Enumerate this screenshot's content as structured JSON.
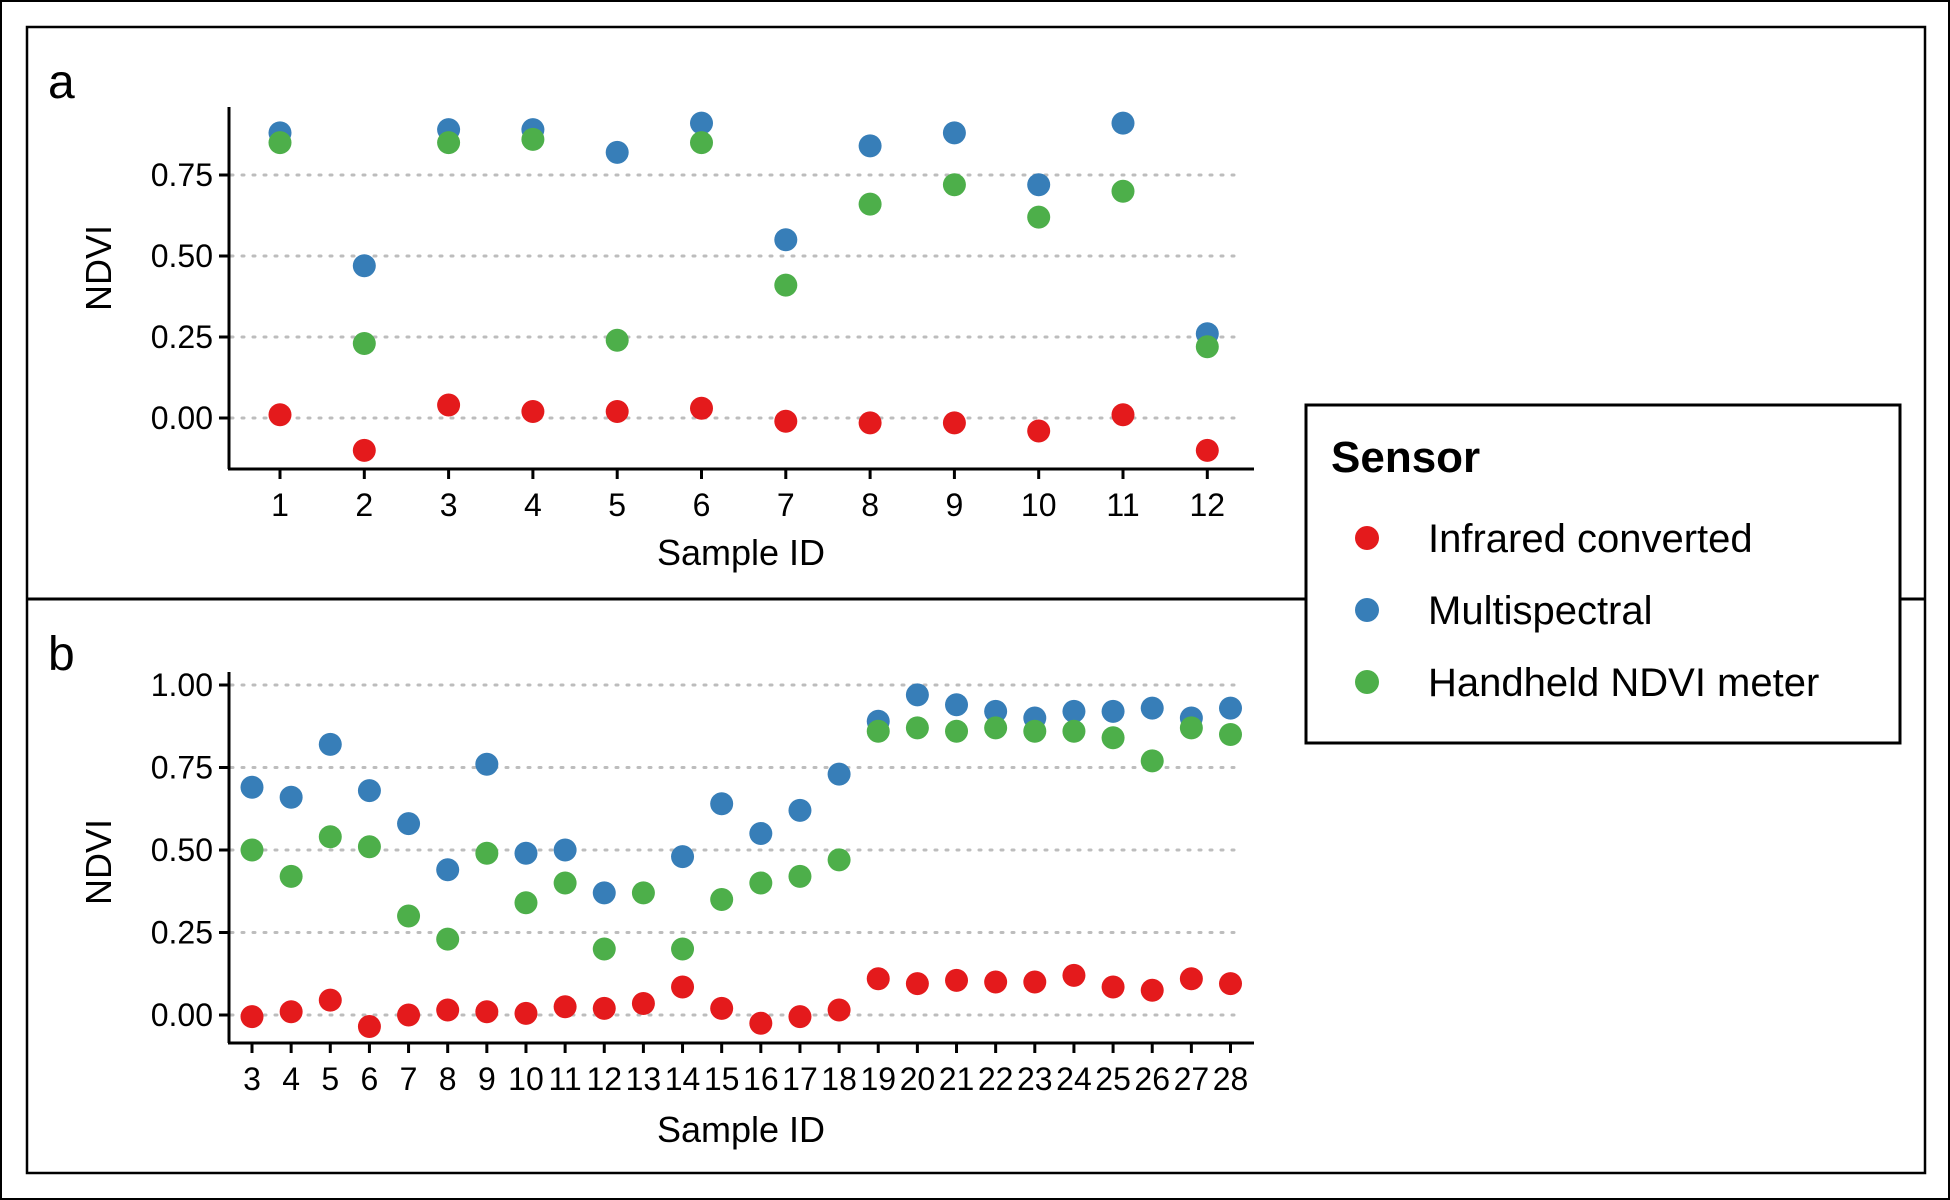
{
  "legend": {
    "title": "Sensor",
    "items": [
      {
        "label": "Infrared converted",
        "color": "#e41a1c"
      },
      {
        "label": "Multispectral",
        "color": "#377eb8"
      },
      {
        "label": "Handheld NDVI meter",
        "color": "#4daf4a"
      }
    ]
  },
  "chart_data": [
    {
      "panel": "a",
      "type": "scatter",
      "xlabel": "Sample ID",
      "ylabel": "NDVI",
      "categories": [
        "1",
        "2",
        "3",
        "4",
        "5",
        "6",
        "7",
        "8",
        "9",
        "10",
        "11",
        "12"
      ],
      "yticks": [
        "0.00",
        "0.25",
        "0.50",
        "0.75"
      ],
      "ylim": [
        -0.13,
        0.97
      ],
      "grid": "horizontal dotted",
      "series": [
        {
          "name": "Infrared converted",
          "color": "#e41a1c",
          "values": [
            0.01,
            -0.1,
            0.04,
            0.02,
            0.02,
            0.03,
            -0.01,
            -0.015,
            -0.015,
            -0.04,
            0.01,
            -0.1
          ]
        },
        {
          "name": "Multispectral",
          "color": "#377eb8",
          "values": [
            0.88,
            0.47,
            0.89,
            0.89,
            0.82,
            0.91,
            0.55,
            0.84,
            0.88,
            0.72,
            0.91,
            0.26
          ]
        },
        {
          "name": "Handheld NDVI meter",
          "color": "#4daf4a",
          "values": [
            0.85,
            0.23,
            0.85,
            0.86,
            0.24,
            0.85,
            0.41,
            0.66,
            0.72,
            0.62,
            0.7,
            0.22
          ]
        }
      ]
    },
    {
      "panel": "b",
      "type": "scatter",
      "xlabel": "Sample ID",
      "ylabel": "NDVI",
      "categories": [
        "3",
        "4",
        "5",
        "6",
        "7",
        "8",
        "9",
        "10",
        "11",
        "12",
        "13",
        "14",
        "15",
        "16",
        "17",
        "18",
        "19",
        "20",
        "21",
        "22",
        "23",
        "24",
        "25",
        "26",
        "27",
        "28"
      ],
      "yticks": [
        "0.00",
        "0.25",
        "0.50",
        "0.75",
        "1.00"
      ],
      "ylim": [
        -0.08,
        1.05
      ],
      "grid": "horizontal dotted",
      "series": [
        {
          "name": "Infrared converted",
          "color": "#e41a1c",
          "values": [
            -0.005,
            0.01,
            0.045,
            -0.035,
            0.0,
            0.015,
            0.01,
            0.005,
            0.025,
            0.02,
            0.035,
            0.085,
            0.02,
            -0.025,
            -0.005,
            0.015,
            0.11,
            0.095,
            0.105,
            0.1,
            0.1,
            0.12,
            0.085,
            0.075,
            0.11,
            0.095
          ]
        },
        {
          "name": "Multispectral",
          "color": "#377eb8",
          "values": [
            0.69,
            0.66,
            0.82,
            0.68,
            0.58,
            0.44,
            0.76,
            0.49,
            0.5,
            0.37,
            null,
            0.48,
            0.64,
            0.55,
            0.62,
            0.73,
            0.89,
            0.97,
            0.94,
            0.92,
            0.9,
            0.92,
            0.92,
            0.93,
            0.9,
            0.93
          ]
        },
        {
          "name": "Handheld NDVI meter",
          "color": "#4daf4a",
          "values": [
            0.5,
            0.42,
            0.54,
            0.51,
            0.3,
            0.23,
            0.49,
            0.34,
            0.4,
            0.2,
            0.37,
            0.2,
            0.35,
            0.4,
            0.42,
            0.47,
            0.86,
            0.87,
            0.86,
            0.87,
            0.86,
            0.86,
            0.84,
            0.77,
            0.87,
            0.85
          ]
        }
      ]
    }
  ]
}
